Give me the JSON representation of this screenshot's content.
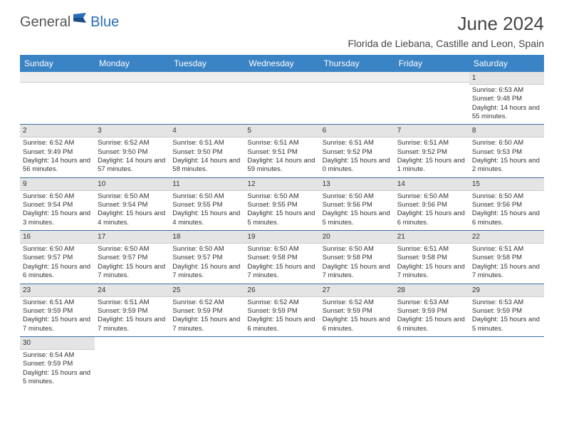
{
  "logo": {
    "part1": "General",
    "part2": "Blue"
  },
  "title": "June 2024",
  "location": "Florida de Liebana, Castille and Leon, Spain",
  "header_color": "#3a83c5",
  "days": [
    "Sunday",
    "Monday",
    "Tuesday",
    "Wednesday",
    "Thursday",
    "Friday",
    "Saturday"
  ],
  "weeks": [
    [
      null,
      null,
      null,
      null,
      null,
      null,
      {
        "n": "1",
        "sr": "6:53 AM",
        "ss": "9:48 PM",
        "dl": "14 hours and 55 minutes."
      }
    ],
    [
      {
        "n": "2",
        "sr": "6:52 AM",
        "ss": "9:49 PM",
        "dl": "14 hours and 56 minutes."
      },
      {
        "n": "3",
        "sr": "6:52 AM",
        "ss": "9:50 PM",
        "dl": "14 hours and 57 minutes."
      },
      {
        "n": "4",
        "sr": "6:51 AM",
        "ss": "9:50 PM",
        "dl": "14 hours and 58 minutes."
      },
      {
        "n": "5",
        "sr": "6:51 AM",
        "ss": "9:51 PM",
        "dl": "14 hours and 59 minutes."
      },
      {
        "n": "6",
        "sr": "6:51 AM",
        "ss": "9:52 PM",
        "dl": "15 hours and 0 minutes."
      },
      {
        "n": "7",
        "sr": "6:51 AM",
        "ss": "9:52 PM",
        "dl": "15 hours and 1 minute."
      },
      {
        "n": "8",
        "sr": "6:50 AM",
        "ss": "9:53 PM",
        "dl": "15 hours and 2 minutes."
      }
    ],
    [
      {
        "n": "9",
        "sr": "6:50 AM",
        "ss": "9:54 PM",
        "dl": "15 hours and 3 minutes."
      },
      {
        "n": "10",
        "sr": "6:50 AM",
        "ss": "9:54 PM",
        "dl": "15 hours and 4 minutes."
      },
      {
        "n": "11",
        "sr": "6:50 AM",
        "ss": "9:55 PM",
        "dl": "15 hours and 4 minutes."
      },
      {
        "n": "12",
        "sr": "6:50 AM",
        "ss": "9:55 PM",
        "dl": "15 hours and 5 minutes."
      },
      {
        "n": "13",
        "sr": "6:50 AM",
        "ss": "9:56 PM",
        "dl": "15 hours and 5 minutes."
      },
      {
        "n": "14",
        "sr": "6:50 AM",
        "ss": "9:56 PM",
        "dl": "15 hours and 6 minutes."
      },
      {
        "n": "15",
        "sr": "6:50 AM",
        "ss": "9:56 PM",
        "dl": "15 hours and 6 minutes."
      }
    ],
    [
      {
        "n": "16",
        "sr": "6:50 AM",
        "ss": "9:57 PM",
        "dl": "15 hours and 6 minutes."
      },
      {
        "n": "17",
        "sr": "6:50 AM",
        "ss": "9:57 PM",
        "dl": "15 hours and 7 minutes."
      },
      {
        "n": "18",
        "sr": "6:50 AM",
        "ss": "9:57 PM",
        "dl": "15 hours and 7 minutes."
      },
      {
        "n": "19",
        "sr": "6:50 AM",
        "ss": "9:58 PM",
        "dl": "15 hours and 7 minutes."
      },
      {
        "n": "20",
        "sr": "6:50 AM",
        "ss": "9:58 PM",
        "dl": "15 hours and 7 minutes."
      },
      {
        "n": "21",
        "sr": "6:51 AM",
        "ss": "9:58 PM",
        "dl": "15 hours and 7 minutes."
      },
      {
        "n": "22",
        "sr": "6:51 AM",
        "ss": "9:58 PM",
        "dl": "15 hours and 7 minutes."
      }
    ],
    [
      {
        "n": "23",
        "sr": "6:51 AM",
        "ss": "9:59 PM",
        "dl": "15 hours and 7 minutes."
      },
      {
        "n": "24",
        "sr": "6:51 AM",
        "ss": "9:59 PM",
        "dl": "15 hours and 7 minutes."
      },
      {
        "n": "25",
        "sr": "6:52 AM",
        "ss": "9:59 PM",
        "dl": "15 hours and 7 minutes."
      },
      {
        "n": "26",
        "sr": "6:52 AM",
        "ss": "9:59 PM",
        "dl": "15 hours and 6 minutes."
      },
      {
        "n": "27",
        "sr": "6:52 AM",
        "ss": "9:59 PM",
        "dl": "15 hours and 6 minutes."
      },
      {
        "n": "28",
        "sr": "6:53 AM",
        "ss": "9:59 PM",
        "dl": "15 hours and 6 minutes."
      },
      {
        "n": "29",
        "sr": "6:53 AM",
        "ss": "9:59 PM",
        "dl": "15 hours and 5 minutes."
      }
    ],
    [
      {
        "n": "30",
        "sr": "6:54 AM",
        "ss": "9:59 PM",
        "dl": "15 hours and 5 minutes."
      },
      null,
      null,
      null,
      null,
      null,
      null
    ]
  ],
  "labels": {
    "sunrise": "Sunrise:",
    "sunset": "Sunset:",
    "daylight": "Daylight:"
  }
}
